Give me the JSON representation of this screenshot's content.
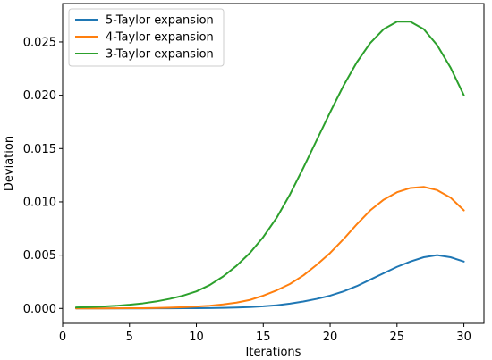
{
  "chart_data": {
    "type": "line",
    "xlabel": "Iterations",
    "ylabel": "Deviation",
    "xlim": [
      0,
      31.5
    ],
    "ylim": [
      -0.0014,
      0.0286
    ],
    "xticks": [
      0,
      5,
      10,
      15,
      20,
      25,
      30
    ],
    "xtick_labels": [
      "0",
      "5",
      "10",
      "15",
      "20",
      "25",
      "30"
    ],
    "yticks": [
      0.0,
      0.005,
      0.01,
      0.015,
      0.02,
      0.025
    ],
    "ytick_labels": [
      "0.000",
      "0.005",
      "0.010",
      "0.015",
      "0.020",
      "0.025"
    ],
    "grid": false,
    "legend_position": "top-left",
    "x": [
      1,
      2,
      3,
      4,
      5,
      6,
      7,
      8,
      9,
      10,
      11,
      12,
      13,
      14,
      15,
      16,
      17,
      18,
      19,
      20,
      21,
      22,
      23,
      24,
      25,
      26,
      27,
      28,
      29,
      30
    ],
    "series": [
      {
        "name": "5-Taylor expansion",
        "color": "#1f77b4",
        "values": [
          0,
          0,
          0,
          0,
          0,
          0,
          1e-05,
          1e-05,
          2e-05,
          3e-05,
          4e-05,
          6e-05,
          9e-05,
          0.00013,
          0.0002,
          0.0003,
          0.00045,
          0.00065,
          0.0009,
          0.0012,
          0.0016,
          0.0021,
          0.0027,
          0.0033,
          0.0039,
          0.0044,
          0.0048,
          0.005,
          0.0048,
          0.0044
        ]
      },
      {
        "name": "4-Taylor expansion",
        "color": "#ff7f0e",
        "values": [
          0,
          0,
          0,
          1e-05,
          2e-05,
          3e-05,
          5e-05,
          8e-05,
          0.00012,
          0.00018,
          0.00026,
          0.00038,
          0.00055,
          0.0008,
          0.0012,
          0.0017,
          0.0023,
          0.0031,
          0.0041,
          0.0052,
          0.0065,
          0.0079,
          0.0092,
          0.0102,
          0.0109,
          0.0113,
          0.0114,
          0.0111,
          0.0104,
          0.0092
        ]
      },
      {
        "name": "3-Taylor expansion",
        "color": "#2ca02c",
        "values": [
          0.0001,
          0.00013,
          0.00018,
          0.00025,
          0.00035,
          0.00048,
          0.00066,
          0.0009,
          0.0012,
          0.0016,
          0.0022,
          0.003,
          0.004,
          0.0052,
          0.0067,
          0.0085,
          0.0107,
          0.0132,
          0.0158,
          0.0184,
          0.0209,
          0.0231,
          0.0249,
          0.0262,
          0.0269,
          0.0269,
          0.0262,
          0.0247,
          0.0226,
          0.02
        ]
      }
    ]
  }
}
